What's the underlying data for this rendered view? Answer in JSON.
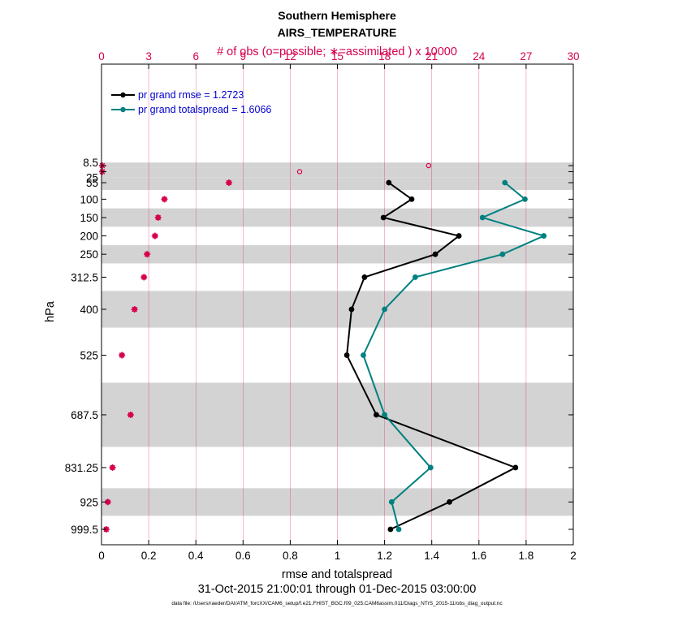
{
  "chart_data": {
    "type": "line",
    "title": "Southern Hemisphere",
    "subtitle": "AIRS_TEMPERATURE",
    "xlabel": "rmse and totalspread",
    "xlim": [
      0,
      2
    ],
    "xticks": [
      "0",
      "0.2",
      "0.4",
      "0.6",
      "0.8",
      "1",
      "1.2",
      "1.4",
      "1.6",
      "1.8",
      "2"
    ],
    "top_axis_label": "# of obs (o=possible; ∗=assimilated ) x 10000",
    "top_xlim": [
      0,
      30
    ],
    "top_xticks": [
      "0",
      "3",
      "6",
      "9",
      "12",
      "15",
      "18",
      "21",
      "24",
      "27",
      "30"
    ],
    "ylabel": "hPa",
    "levels": [
      8.5,
      25,
      55,
      100,
      150,
      200,
      250,
      312.5,
      400,
      525,
      687.5,
      831.25,
      925,
      999.5
    ],
    "level_labels": [
      "8.5",
      "25",
      "55",
      "100",
      "150",
      "200",
      "250",
      "312.5",
      "400",
      "525",
      "687.5",
      "831.25",
      "925",
      "999.5"
    ],
    "bands": [
      [
        0,
        15
      ],
      [
        15,
        40
      ],
      [
        40,
        75
      ],
      [
        125,
        175
      ],
      [
        225,
        275
      ],
      [
        350,
        450
      ],
      [
        600,
        775
      ],
      [
        887.5,
        962.5
      ]
    ],
    "series": [
      {
        "name": "pr grand rmse",
        "color": "#000000",
        "legend": "pr grand rmse = 1.2723",
        "levels": [
          55,
          100,
          150,
          200,
          250,
          312.5,
          400,
          525,
          687.5,
          831.25,
          925,
          999.5
        ],
        "values": [
          1.218,
          1.315,
          1.195,
          1.515,
          1.415,
          1.115,
          1.06,
          1.04,
          1.165,
          1.755,
          1.475,
          1.225
        ]
      },
      {
        "name": "pr grand totalspread",
        "color": "#008080",
        "legend": "pr grand totalspread = 1.6066",
        "levels": [
          55,
          100,
          150,
          200,
          250,
          312.5,
          400,
          525,
          687.5,
          831.25,
          925,
          999.5
        ],
        "values": [
          1.71,
          1.795,
          1.615,
          1.875,
          1.7,
          1.33,
          1.2,
          1.11,
          1.2,
          1.395,
          1.23,
          1.26
        ]
      }
    ],
    "obs_possible": {
      "levels": [
        8.5,
        25,
        55,
        100,
        150,
        200,
        250,
        312.5,
        400,
        525,
        687.5,
        831.25,
        925,
        999.5
      ],
      "values_x10000": [
        20.8,
        12.6,
        8.1,
        4.0,
        3.6,
        3.4,
        2.9,
        2.7,
        2.1,
        1.3,
        1.85,
        0.7,
        0.4,
        0.3
      ]
    },
    "obs_assimilated": {
      "levels": [
        8.5,
        25,
        55,
        100,
        150,
        200,
        250,
        312.5,
        400,
        525,
        687.5,
        831.25,
        925,
        999.5
      ],
      "values_x10000": [
        0.05,
        0.05,
        8.1,
        4.0,
        3.6,
        3.4,
        2.9,
        2.7,
        2.1,
        1.3,
        1.85,
        0.7,
        0.4,
        0.3
      ]
    },
    "legend_position": "top-left",
    "grid": true
  },
  "date_range": "31-Oct-2015 21:00:01 through 01-Dec-2015 03:00:00",
  "footnote": "data file: /Users/raeder/DAI/ATM_forcXX/CAM6_setup/f.e21.FHIST_BGC.f09_025.CAM6assim.011/Diags_NTrS_2015-11/obs_diag_output.nc",
  "colors": {
    "obs": "#d6004f",
    "rmse": "#000000",
    "spread": "#008080",
    "band": "#d3d3d3",
    "legend_text": "#0000d0"
  }
}
